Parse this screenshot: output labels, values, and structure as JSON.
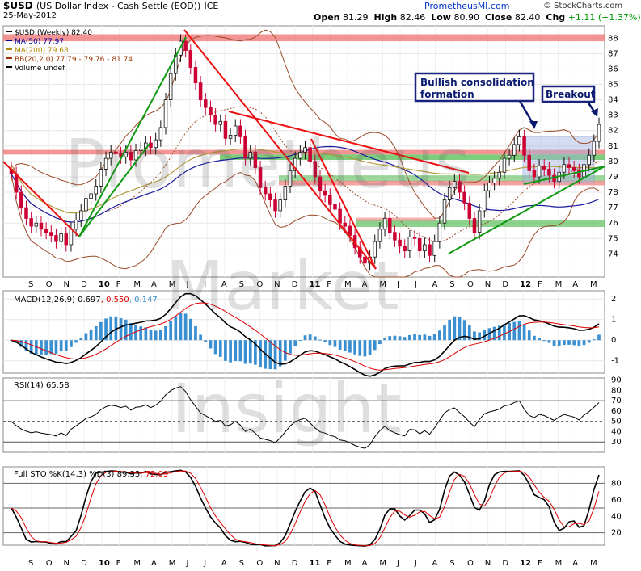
{
  "header": {
    "symbol": "$USD",
    "name": "(US Dollar Index - Cash Settle (EOD))",
    "exchange": "ICE",
    "date": "25-May-2012",
    "brand": "PrometheusMI.com",
    "source": "© StockCharts.com",
    "open_lbl": "Open",
    "open": "81.29",
    "high_lbl": "High",
    "high": "82.46",
    "low_lbl": "Low",
    "low": "80.90",
    "close_lbl": "Close",
    "close": "82.40",
    "chg_lbl": "Chg",
    "chg": "+1.11 (+1.37%)",
    "chg_color": "#009900"
  },
  "watermark": [
    "Prometheus",
    "Market",
    "Insight"
  ],
  "legend": [
    {
      "text": "$USD (Weekly) 82.40",
      "color": "#000000"
    },
    {
      "text": "MA(50) 77.97",
      "color": "#000099"
    },
    {
      "text": "MA(200) 79.68",
      "color": "#b08800"
    },
    {
      "text": "BB(20,2.0) 77.79 - 79.76 - 81.74",
      "color": "#993300"
    },
    {
      "text": "Volume undef",
      "color": "#000000"
    }
  ],
  "annotations": {
    "consolidation": "Bullish consolidation formation",
    "breakout": "Breakout"
  },
  "x_labels": [
    "S",
    "O",
    "N",
    "D",
    "10",
    "F",
    "M",
    "A",
    "M",
    "J",
    "J",
    "A",
    "S",
    "O",
    "N",
    "D",
    "11",
    "F",
    "M",
    "A",
    "M",
    "J",
    "J",
    "A",
    "S",
    "O",
    "N",
    "D",
    "12",
    "F",
    "M",
    "A",
    "M"
  ],
  "colors": {
    "up": "#111111",
    "down": "#cc0033",
    "ma50": "#1a1aa0",
    "ma200": "#b59a3a",
    "bb": "#9a4a28",
    "trend_red": "#ee1111",
    "trend_green": "#119911",
    "zone_red": "#f07a7a",
    "zone_green": "#5cc05c",
    "macd_hist": "#3a8fd0"
  },
  "chart_data": [
    {
      "type": "candlestick",
      "title": "$USD (Weekly) 82.40",
      "ylim": [
        72.5,
        88.8
      ],
      "y_ticks": [
        74,
        75,
        76,
        77,
        78,
        79,
        80,
        81,
        82,
        83,
        84,
        85,
        86,
        87,
        88
      ],
      "close": [
        79.2,
        78.0,
        77.0,
        76.3,
        75.8,
        76.0,
        75.6,
        75.4,
        75.2,
        74.8,
        75.3,
        74.6,
        75.6,
        76.2,
        76.8,
        77.6,
        77.9,
        78.4,
        79.5,
        80.2,
        80.6,
        80.5,
        80.3,
        80.6,
        80.1,
        80.7,
        80.8,
        81.2,
        80.9,
        81.4,
        82.2,
        84.0,
        85.7,
        86.9,
        87.8,
        87.2,
        86.1,
        85.1,
        84.0,
        83.5,
        83.0,
        82.4,
        82.6,
        81.5,
        81.7,
        82.3,
        81.6,
        80.2,
        80.6,
        79.6,
        78.3,
        77.9,
        77.5,
        76.8,
        77.5,
        78.4,
        79.4,
        80.2,
        80.6,
        80.9,
        80.0,
        79.0,
        78.1,
        77.8,
        77.2,
        76.9,
        76.0,
        75.8,
        75.2,
        74.4,
        73.8,
        73.4,
        73.8,
        74.8,
        75.6,
        76.3,
        75.4,
        74.9,
        74.5,
        74.2,
        75.1,
        75.0,
        74.2,
        74.6,
        73.9,
        74.8,
        76.0,
        77.5,
        78.3,
        78.7,
        78.0,
        77.3,
        76.3,
        75.4,
        76.8,
        78.1,
        78.6,
        78.9,
        79.3,
        80.2,
        80.4,
        81.1,
        81.6,
        80.4,
        79.4,
        79.0,
        79.7,
        79.5,
        79.1,
        78.7,
        79.3,
        79.8,
        79.6,
        79.4,
        79.0,
        79.8,
        80.4,
        81.3,
        82.4
      ],
      "macd": {
        "label": "MACD(12,26,9)",
        "macd": 0.697,
        "signal": 0.55,
        "hist": 0.147,
        "ylim": [
          -1.6,
          2.4
        ],
        "y_ticks": [
          -1,
          0,
          1,
          2
        ]
      },
      "rsi": {
        "label": "RSI(14)",
        "value": 65.58,
        "ylim": [
          20,
          92
        ],
        "y_ticks": [
          30,
          40,
          50,
          60,
          70,
          80,
          90
        ],
        "levels": [
          70,
          50,
          30
        ]
      },
      "stoch": {
        "label": "Full STO %K(14,3) %D(3)",
        "k": 89.33,
        "d": 72.09,
        "ylim": [
          5,
          100
        ],
        "y_ticks": [
          20,
          40,
          60,
          80
        ],
        "levels": [
          80,
          50,
          20
        ]
      }
    }
  ]
}
